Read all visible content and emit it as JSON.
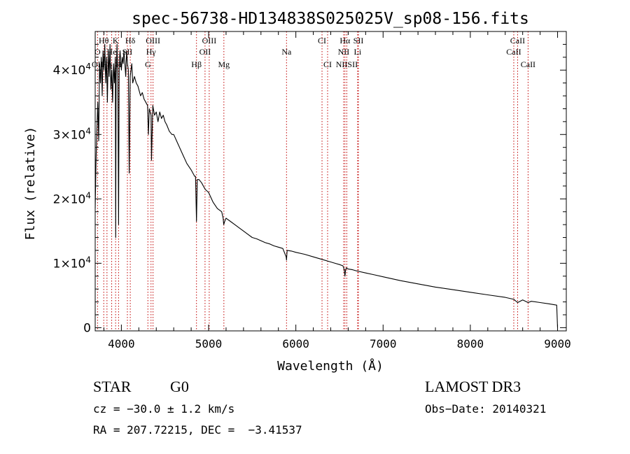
{
  "chart_data": {
    "type": "line",
    "title": "spec-56738-HD134838S025025V_sp08-156.fits",
    "xlabel": "Wavelength (Å)",
    "ylabel": "Flux (relative)",
    "xlim": [
      3700,
      9100
    ],
    "ylim": [
      -500,
      46000
    ],
    "x_ticks": [
      4000,
      5000,
      6000,
      7000,
      8000,
      9000
    ],
    "x_tick_labels": [
      "4000",
      "5000",
      "6000",
      "7000",
      "8000",
      "9000"
    ],
    "y_ticks": [
      0,
      10000,
      20000,
      30000,
      40000
    ],
    "y_tick_labels": [
      {
        "mant": "0",
        "exp": ""
      },
      {
        "mant": "1×10",
        "exp": "4"
      },
      {
        "mant": "2×10",
        "exp": "4"
      },
      {
        "mant": "3×10",
        "exp": "4"
      },
      {
        "mant": "4×10",
        "exp": "4"
      }
    ],
    "series": [
      {
        "name": "spectrum",
        "x": [
          3700,
          3710,
          3720,
          3730,
          3740,
          3750,
          3760,
          3770,
          3780,
          3790,
          3800,
          3810,
          3820,
          3830,
          3840,
          3850,
          3860,
          3870,
          3880,
          3890,
          3900,
          3910,
          3920,
          3930,
          3935,
          3940,
          3950,
          3960,
          3968,
          3975,
          3985,
          4000,
          4010,
          4020,
          4030,
          4040,
          4050,
          4060,
          4070,
          4080,
          4090,
          4101,
          4110,
          4120,
          4130,
          4150,
          4170,
          4190,
          4200,
          4220,
          4240,
          4260,
          4280,
          4300,
          4310,
          4320,
          4340,
          4345,
          4360,
          4380,
          4400,
          4420,
          4440,
          4460,
          4480,
          4500,
          4520,
          4550,
          4580,
          4600,
          4650,
          4700,
          4750,
          4800,
          4820,
          4840,
          4850,
          4861,
          4870,
          4890,
          4920,
          4960,
          5000,
          5050,
          5100,
          5150,
          5167,
          5173,
          5184,
          5200,
          5250,
          5300,
          5350,
          5400,
          5450,
          5500,
          5550,
          5600,
          5650,
          5700,
          5750,
          5800,
          5850,
          5889,
          5893,
          5900,
          5950,
          6000,
          6100,
          6200,
          6300,
          6400,
          6450,
          6500,
          6540,
          6555,
          6563,
          6570,
          6580,
          6600,
          6650,
          6700,
          6800,
          6900,
          7000,
          7200,
          7400,
          7600,
          7800,
          8000,
          8200,
          8400,
          8498,
          8542,
          8600,
          8662,
          8700,
          8800,
          8900,
          8990,
          9000
        ],
        "y": [
          18500,
          26000,
          31000,
          35000,
          29000,
          41000,
          38000,
          42000,
          36000,
          43000,
          40000,
          44000,
          38000,
          42000,
          35000,
          43000,
          39000,
          44000,
          37000,
          40000,
          35000,
          41000,
          38000,
          42000,
          14000,
          39000,
          44000,
          38000,
          16000,
          41000,
          43000,
          40000,
          42000,
          41000,
          43000,
          41000,
          39000,
          43000,
          41000,
          40000,
          24000,
          39000,
          40000,
          41000,
          38000,
          39000,
          38000,
          37500,
          37000,
          36000,
          36500,
          35500,
          35000,
          34500,
          30000,
          34000,
          33000,
          26000,
          34500,
          33000,
          33500,
          32000,
          33500,
          32500,
          33000,
          32000,
          31500,
          30500,
          30000,
          30000,
          28500,
          27000,
          25500,
          24500,
          24000,
          23500,
          23500,
          16500,
          23000,
          23000,
          22500,
          21500,
          21000,
          19500,
          18500,
          18000,
          17000,
          16000,
          16500,
          17000,
          16500,
          16000,
          15500,
          15000,
          14500,
          14000,
          13800,
          13500,
          13200,
          13000,
          12700,
          12500,
          12300,
          11000,
          10500,
          12000,
          11900,
          11700,
          11400,
          11000,
          10600,
          10200,
          10000,
          9800,
          9600,
          9000,
          8000,
          9000,
          9300,
          9100,
          9000,
          8800,
          8500,
          8200,
          7900,
          7300,
          6800,
          6300,
          5900,
          5500,
          5100,
          4700,
          4400,
          3900,
          4300,
          3900,
          4100,
          3900,
          3700,
          3500,
          0
        ]
      }
    ],
    "lines": [
      {
        "label": "Hθ",
        "wl": 3798,
        "row": 1
      },
      {
        "label": "K",
        "wl": 3934,
        "row": 1
      },
      {
        "label": "Hδ",
        "wl": 4102,
        "row": 1
      },
      {
        "label": "OIII",
        "wl": 4363,
        "row": 1
      },
      {
        "label": "OIII",
        "wl": 5007,
        "row": 1
      },
      {
        "label": "CI",
        "wl": 6300,
        "row": 1
      },
      {
        "label": "Hα",
        "wl": 6563,
        "row": 1
      },
      {
        "label": "SII",
        "wl": 6717,
        "row": 1
      },
      {
        "label": "CaII",
        "wl": 8542,
        "row": 1
      },
      {
        "label": "O",
        "wl": 3727,
        "row": 2
      },
      {
        "label": "He",
        "wl": 3889,
        "row": 2
      },
      {
        "label": "SII",
        "wl": 4069,
        "row": 2
      },
      {
        "label": "Hγ",
        "wl": 4340,
        "row": 2
      },
      {
        "label": "OII",
        "wl": 4959,
        "row": 2
      },
      {
        "label": "Na",
        "wl": 5893,
        "row": 2
      },
      {
        "label": "NII",
        "wl": 6548,
        "row": 2
      },
      {
        "label": "Li",
        "wl": 6708,
        "row": 2
      },
      {
        "label": "CaII",
        "wl": 8498,
        "row": 2
      },
      {
        "label": "OII",
        "wl": 3727,
        "row": 3
      },
      {
        "label": "Hη",
        "wl": 3835,
        "row": 3
      },
      {
        "label": "H",
        "wl": 3968,
        "row": 3
      },
      {
        "label": "G",
        "wl": 4304,
        "row": 3
      },
      {
        "label": "Hβ",
        "wl": 4861,
        "row": 3
      },
      {
        "label": "Mg",
        "wl": 5175,
        "row": 3
      },
      {
        "label": "CI",
        "wl": 6364,
        "row": 3
      },
      {
        "label": "NIISII",
        "wl": 6584,
        "row": 3
      },
      {
        "label": "CaII",
        "wl": 8662,
        "row": 3
      }
    ]
  },
  "info": {
    "object_type": "STAR",
    "subclass": "G0",
    "survey": "LAMOST DR3",
    "cz": "cz = −30.0 ± 1.2 km/s",
    "obs_date": "Obs−Date: 20140321",
    "coords": "RA = 207.72215, DEC =  −3.41537"
  }
}
